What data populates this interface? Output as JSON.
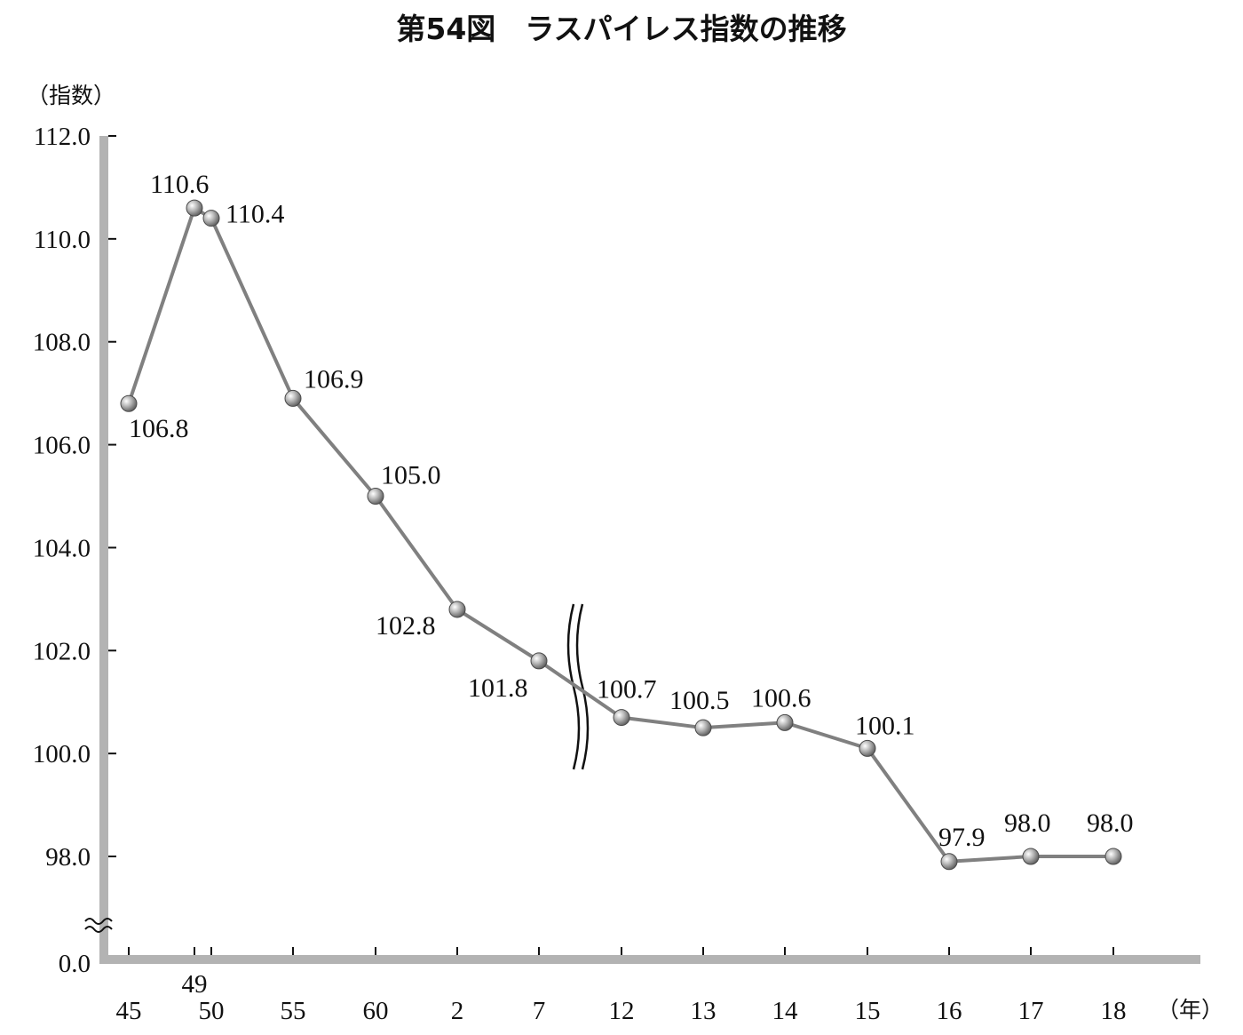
{
  "chart_data": {
    "type": "line",
    "title": "第54図　ラスパイレス指数の推移",
    "ylabel": "（指数）",
    "xlabel": "（年）",
    "ylim": [
      98.0,
      112.0
    ],
    "y_ticks": [
      "112.0",
      "110.0",
      "108.0",
      "106.0",
      "104.0",
      "102.0",
      "100.0",
      "98.0",
      "0.0"
    ],
    "y_tick_values": [
      112,
      110,
      108,
      106,
      104,
      102,
      100,
      98
    ],
    "categories": [
      "45",
      "49",
      "50",
      "55",
      "60",
      "2",
      "7",
      "12",
      "13",
      "14",
      "15",
      "16",
      "17",
      "18"
    ],
    "series": [
      {
        "values": [
          106.8,
          110.6,
          110.4,
          106.9,
          105.0,
          102.8,
          101.8,
          100.7,
          100.5,
          100.6,
          100.1,
          97.9,
          98.0,
          98.0
        ],
        "labels": [
          "106.8",
          "110.6",
          "110.4",
          "106.9",
          "105.0",
          "102.8",
          "101.8",
          "100.7",
          "100.5",
          "100.6",
          "100.1",
          "97.9",
          "98.0",
          "98.0"
        ]
      }
    ],
    "axis_break_y": true,
    "axis_break_x": true,
    "grid": false,
    "colors": {
      "line": "#808080",
      "axis": "#b3b3b3",
      "marker": "#8a8a8a"
    }
  }
}
